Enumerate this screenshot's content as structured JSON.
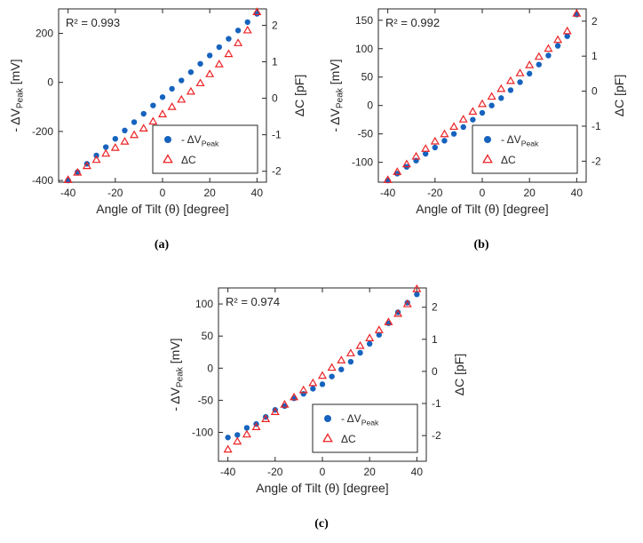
{
  "figure": {
    "captions": [
      "(a)",
      "(b)",
      "(c)"
    ]
  },
  "colors": {
    "blue": "#1663be",
    "red": "#ec2224",
    "axis": "#262626",
    "background": "#ffffff"
  },
  "chart_data": [
    {
      "type": "scatter",
      "panel": "a",
      "r2_text": "R² = 0.993",
      "xlabel": "Angle of Tilt (θ) [degree]",
      "ylabel_left": {
        "pre": "- ΔV",
        "sub": "Peak",
        "post": " [mV]"
      },
      "ylabel_right": {
        "pre": "ΔC [pF]",
        "sub": "",
        "post": ""
      },
      "xlim": [
        -44,
        44
      ],
      "xticks": [
        -40,
        -20,
        0,
        20,
        40
      ],
      "yleft_lim": [
        -407,
        300
      ],
      "yleft_ticks": [
        200,
        0,
        -200,
        -400
      ],
      "yright_lim": [
        -2.3,
        2.45
      ],
      "yright_ticks": [
        2,
        1,
        0,
        -1,
        -2
      ],
      "legend_position": "lower right",
      "x": [
        -40,
        -36,
        -32,
        -28,
        -24,
        -20,
        -16,
        -12,
        -8,
        -4,
        0,
        4,
        8,
        12,
        16,
        20,
        24,
        28,
        32,
        36,
        40
      ],
      "series": [
        {
          "id": "dv-peak",
          "name": "- ΔV_Peak",
          "label_parts": {
            "pre": "- ΔV",
            "sub": "Peak",
            "post": ""
          },
          "axis": "left",
          "marker": "filled-circle",
          "color": "#1663be",
          "y": [
            -400,
            -366,
            -332,
            -298,
            -264,
            -230,
            -196,
            -162,
            -128,
            -94,
            -60,
            -26,
            8,
            42,
            76,
            110,
            144,
            178,
            212,
            246,
            280
          ]
        },
        {
          "id": "dc",
          "name": "ΔC",
          "label_parts": {
            "pre": "ΔC",
            "sub": "",
            "post": ""
          },
          "axis": "right",
          "marker": "open-triangle",
          "color": "#ec2224",
          "y": [
            -2.25,
            -2.05,
            -1.87,
            -1.7,
            -1.53,
            -1.37,
            -1.2,
            -1.02,
            -0.84,
            -0.65,
            -0.45,
            -0.25,
            -0.05,
            0.17,
            0.4,
            0.65,
            0.92,
            1.2,
            1.5,
            1.85,
            2.35
          ]
        }
      ]
    },
    {
      "type": "scatter",
      "panel": "b",
      "r2_text": "R² = 0.992",
      "xlabel": "Angle of Tilt (θ) [degree]",
      "ylabel_left": {
        "pre": "- ΔV",
        "sub": "Peak",
        "post": " [mV]"
      },
      "ylabel_right": {
        "pre": "ΔC [pF]",
        "sub": "",
        "post": ""
      },
      "xlim": [
        -44,
        44
      ],
      "xticks": [
        -40,
        -20,
        0,
        20,
        40
      ],
      "yleft_lim": [
        -135,
        170
      ],
      "yleft_ticks": [
        150,
        100,
        50,
        0,
        -50,
        -100
      ],
      "yright_lim": [
        -2.6,
        2.35
      ],
      "yright_ticks": [
        2,
        1,
        0,
        -1,
        -2
      ],
      "legend_position": "lower right",
      "x": [
        -40,
        -36,
        -32,
        -28,
        -24,
        -20,
        -16,
        -12,
        -8,
        -4,
        0,
        4,
        8,
        12,
        16,
        20,
        24,
        28,
        32,
        36,
        40
      ],
      "series": [
        {
          "id": "dv-peak",
          "name": "- ΔV_Peak",
          "label_parts": {
            "pre": "- ΔV",
            "sub": "Peak",
            "post": ""
          },
          "axis": "left",
          "marker": "filled-circle",
          "color": "#1663be",
          "y": [
            -132,
            -120,
            -108,
            -97,
            -85,
            -74,
            -62,
            -50,
            -38,
            -25,
            -13,
            0,
            13,
            27,
            41,
            56,
            72,
            88,
            105,
            122,
            160
          ]
        },
        {
          "id": "dc",
          "name": "ΔC",
          "label_parts": {
            "pre": "ΔC",
            "sub": "",
            "post": ""
          },
          "axis": "right",
          "marker": "open-triangle",
          "color": "#ec2224",
          "y": [
            -2.55,
            -2.32,
            -2.1,
            -1.88,
            -1.66,
            -1.45,
            -1.24,
            -1.03,
            -0.82,
            -0.6,
            -0.38,
            -0.17,
            0.05,
            0.28,
            0.5,
            0.73,
            0.97,
            1.2,
            1.45,
            1.7,
            2.2
          ]
        }
      ]
    },
    {
      "type": "scatter",
      "panel": "c",
      "r2_text": "R² = 0.974",
      "xlabel": "Angle of Tilt (θ) [degree]",
      "ylabel_left": {
        "pre": "- ΔV",
        "sub": "Peak",
        "post": " [mV]"
      },
      "ylabel_right": {
        "pre": "ΔC [pF]",
        "sub": "",
        "post": ""
      },
      "xlim": [
        -44,
        44
      ],
      "xticks": [
        -40,
        -20,
        0,
        20,
        40
      ],
      "yleft_lim": [
        -145,
        125
      ],
      "yleft_ticks": [
        100,
        50,
        0,
        -50,
        -100
      ],
      "yright_lim": [
        -2.8,
        2.6
      ],
      "yright_ticks": [
        2,
        1,
        0,
        -1,
        -2
      ],
      "legend_position": "lower right",
      "x": [
        -40,
        -36,
        -32,
        -28,
        -24,
        -20,
        -16,
        -12,
        -8,
        -4,
        0,
        4,
        8,
        12,
        16,
        20,
        24,
        28,
        32,
        36,
        40
      ],
      "series": [
        {
          "id": "dv-peak",
          "name": "- ΔV_Peak",
          "label_parts": {
            "pre": "- ΔV",
            "sub": "Peak",
            "post": ""
          },
          "axis": "left",
          "marker": "filled-circle",
          "color": "#1663be",
          "y": [
            -108,
            -104,
            -93,
            -87,
            -76,
            -65,
            -59,
            -47,
            -40,
            -32,
            -25,
            -13,
            -2,
            10,
            24,
            38,
            52,
            70,
            87,
            102,
            115
          ]
        },
        {
          "id": "dc",
          "name": "ΔC",
          "label_parts": {
            "pre": "ΔC",
            "sub": "",
            "post": ""
          },
          "axis": "right",
          "marker": "open-triangle",
          "color": "#ec2224",
          "y": [
            -2.45,
            -2.2,
            -1.98,
            -1.75,
            -1.5,
            -1.28,
            -1.05,
            -0.82,
            -0.6,
            -0.38,
            -0.15,
            0.1,
            0.33,
            0.55,
            0.78,
            1.02,
            1.27,
            1.52,
            1.78,
            2.08,
            2.55
          ]
        }
      ]
    }
  ]
}
